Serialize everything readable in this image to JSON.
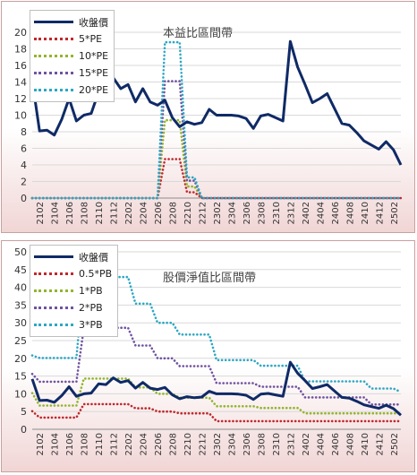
{
  "chart_data": [
    {
      "type": "line",
      "title": "本益比區間帶",
      "x": [
        "2101",
        "2102",
        "2103",
        "2104",
        "2105",
        "2106",
        "2107",
        "2108",
        "2109",
        "2110",
        "2111",
        "2112",
        "2201",
        "2202",
        "2203",
        "2204",
        "2205",
        "2206",
        "2207",
        "2208",
        "2209",
        "2210",
        "2211",
        "2212",
        "2301",
        "2302",
        "2303",
        "2304",
        "2305",
        "2306",
        "2307",
        "2308",
        "2309",
        "2310",
        "2311",
        "2312",
        "2401",
        "2402",
        "2403",
        "2404",
        "2405",
        "2406",
        "2407",
        "2408",
        "2409",
        "2410",
        "2411",
        "2412",
        "2501",
        "2502",
        "2503"
      ],
      "x_tick_labels": [
        "2102",
        "2104",
        "2106",
        "2108",
        "2110",
        "2112",
        "2202",
        "2204",
        "2206",
        "2208",
        "2210",
        "2212",
        "2302",
        "2304",
        "2306",
        "2308",
        "2310",
        "2312",
        "2402",
        "2404",
        "2406",
        "2408",
        "2410",
        "2412",
        "2502"
      ],
      "ylim": [
        0,
        20
      ],
      "y_ticks": [
        0,
        2,
        4,
        6,
        8,
        10,
        12,
        14,
        16,
        18,
        20
      ],
      "grid": true,
      "legend_position": "top-left",
      "series": [
        {
          "name": "收盤價",
          "style": "solid",
          "color": "#0f2a66",
          "values": [
            14.2,
            8.1,
            8.2,
            7.6,
            9.5,
            12.0,
            9.3,
            10.0,
            10.2,
            12.8,
            12.6,
            14.5,
            13.2,
            13.7,
            11.6,
            13.2,
            11.6,
            11.2,
            11.8,
            9.7,
            8.6,
            9.2,
            8.9,
            9.1,
            10.7,
            10.0,
            10.0,
            10.0,
            9.9,
            9.6,
            8.4,
            9.9,
            10.1,
            9.7,
            9.3,
            18.9,
            15.8,
            13.7,
            11.5,
            12.0,
            12.6,
            10.8,
            9.0,
            8.8,
            7.9,
            6.9,
            6.4,
            5.9,
            6.8,
            5.8,
            4.0
          ]
        },
        {
          "name": "5*PE",
          "style": "dotted",
          "color": "#c0282d",
          "values": [
            0,
            0,
            0,
            0,
            0,
            0,
            0,
            0,
            0,
            0,
            0,
            0,
            0,
            0,
            0,
            0,
            0,
            0,
            4.7,
            4.7,
            4.7,
            0.7,
            0.7,
            0,
            0,
            0,
            0,
            0,
            0,
            0,
            0,
            0,
            0,
            0,
            0,
            0,
            0,
            0,
            0,
            0,
            0,
            0,
            0,
            0,
            0,
            0,
            0,
            0,
            0,
            0,
            0
          ]
        },
        {
          "name": "10*PE",
          "style": "dotted",
          "color": "#92b52e",
          "values": [
            0,
            0,
            0,
            0,
            0,
            0,
            0,
            0,
            0,
            0,
            0,
            0,
            0,
            0,
            0,
            0,
            0,
            0,
            9.4,
            9.4,
            9.4,
            1.4,
            1.4,
            0,
            0,
            0,
            0,
            0,
            0,
            0,
            0,
            0,
            0,
            0,
            0,
            0,
            0,
            0,
            0,
            0,
            0,
            0,
            0,
            0,
            0,
            0,
            0,
            0,
            0,
            0,
            0
          ]
        },
        {
          "name": "15*PE",
          "style": "dotted",
          "color": "#7052a0",
          "values": [
            0,
            0,
            0,
            0,
            0,
            0,
            0,
            0,
            0,
            0,
            0,
            0,
            0,
            0,
            0,
            0,
            0,
            0,
            14.1,
            14.1,
            14.1,
            2.1,
            2.1,
            0,
            0,
            0,
            0,
            0,
            0,
            0,
            0,
            0,
            0,
            0,
            0,
            0,
            0,
            0,
            0,
            0,
            0,
            0,
            0,
            0,
            0,
            0,
            0,
            0,
            0,
            0,
            0
          ]
        },
        {
          "name": "20*PE",
          "style": "dotted",
          "color": "#2ea7c3",
          "values": [
            0,
            0,
            0,
            0,
            0,
            0,
            0,
            0,
            0,
            0,
            0,
            0,
            0,
            0,
            0,
            0,
            0,
            0,
            18.8,
            18.8,
            18.8,
            2.5,
            2.5,
            0,
            0,
            0,
            0,
            0,
            0,
            0,
            0,
            0,
            0,
            0,
            0,
            0,
            0,
            0,
            0,
            0,
            0,
            0,
            0,
            0,
            0,
            0,
            0,
            0,
            0,
            0,
            0
          ]
        }
      ]
    },
    {
      "type": "line",
      "title": "股價淨值比區間帶",
      "x": [
        "2101",
        "2102",
        "2103",
        "2104",
        "2105",
        "2106",
        "2107",
        "2108",
        "2109",
        "2110",
        "2111",
        "2112",
        "2201",
        "2202",
        "2203",
        "2204",
        "2205",
        "2206",
        "2207",
        "2208",
        "2209",
        "2210",
        "2211",
        "2212",
        "2301",
        "2302",
        "2303",
        "2304",
        "2305",
        "2306",
        "2307",
        "2308",
        "2309",
        "2310",
        "2311",
        "2312",
        "2401",
        "2402",
        "2403",
        "2404",
        "2405",
        "2406",
        "2407",
        "2408",
        "2409",
        "2410",
        "2411",
        "2412",
        "2501",
        "2502",
        "2503"
      ],
      "x_tick_labels": [
        "2102",
        "2104",
        "2106",
        "2108",
        "2110",
        "2112",
        "2202",
        "2204",
        "2206",
        "2208",
        "2210",
        "2212",
        "2302",
        "2304",
        "2306",
        "2308",
        "2310",
        "2312",
        "2402",
        "2404",
        "2406",
        "2408",
        "2410",
        "2412",
        "2502"
      ],
      "ylim": [
        0,
        50
      ],
      "y_ticks": [
        0,
        5,
        10,
        15,
        20,
        25,
        30,
        35,
        40,
        45,
        50
      ],
      "grid": true,
      "legend_position": "top-left",
      "series": [
        {
          "name": "收盤價",
          "style": "solid",
          "color": "#0f2a66",
          "values": [
            14.2,
            8.1,
            8.2,
            7.6,
            9.5,
            12.0,
            9.3,
            10.0,
            10.2,
            12.8,
            12.6,
            14.5,
            13.2,
            13.7,
            11.6,
            13.2,
            11.6,
            11.2,
            11.8,
            9.7,
            8.6,
            9.2,
            8.9,
            9.1,
            10.7,
            10.0,
            10.0,
            10.0,
            9.9,
            9.6,
            8.4,
            9.9,
            10.1,
            9.7,
            9.3,
            18.9,
            15.8,
            13.7,
            11.5,
            12.0,
            12.6,
            10.8,
            9.0,
            8.8,
            7.9,
            6.9,
            6.4,
            5.9,
            6.8,
            5.8,
            4.0
          ]
        },
        {
          "name": "0.5*PB",
          "style": "dotted",
          "color": "#c0282d",
          "values": [
            5.1,
            3.3,
            3.3,
            3.3,
            3.3,
            3.3,
            3.3,
            7.1,
            7.1,
            7.1,
            7.1,
            7.1,
            7.1,
            7.1,
            5.9,
            5.9,
            5.9,
            5.0,
            5.0,
            5.0,
            4.5,
            4.5,
            4.5,
            4.5,
            4.5,
            2.3,
            2.3,
            2.3,
            2.3,
            2.3,
            2.3,
            2.3,
            2.3,
            2.3,
            2.3,
            2.3,
            2.3,
            2.3,
            2.3,
            2.3,
            2.3,
            2.3,
            2.3,
            2.3,
            2.3,
            2.3,
            2.3,
            2.3,
            2.3,
            2.3,
            2.3
          ]
        },
        {
          "name": "1*PB",
          "style": "dotted",
          "color": "#92b52e",
          "values": [
            10.2,
            6.7,
            6.7,
            6.7,
            6.7,
            6.7,
            6.7,
            14.3,
            14.3,
            14.3,
            14.3,
            14.3,
            14.3,
            14.3,
            11.8,
            11.8,
            11.8,
            10.0,
            10.0,
            10.0,
            8.9,
            8.9,
            8.9,
            8.9,
            8.9,
            6.5,
            6.5,
            6.5,
            6.5,
            6.5,
            6.5,
            6.0,
            6.0,
            6.0,
            6.0,
            6.0,
            6.0,
            4.5,
            4.5,
            4.5,
            4.5,
            4.5,
            4.5,
            4.5,
            4.5,
            4.5,
            4.5,
            4.5,
            4.5,
            4.5,
            4.5
          ]
        },
        {
          "name": "2*PB",
          "style": "dotted",
          "color": "#7052a0",
          "values": [
            15.6,
            13.4,
            13.4,
            13.4,
            13.4,
            13.4,
            13.4,
            28.6,
            28.6,
            28.6,
            28.6,
            28.6,
            28.6,
            28.6,
            23.6,
            23.6,
            23.6,
            20.0,
            20.0,
            20.0,
            17.8,
            17.8,
            17.8,
            17.8,
            17.8,
            13.0,
            13.0,
            13.0,
            13.0,
            13.0,
            13.0,
            12.0,
            12.0,
            12.0,
            12.0,
            12.0,
            12.0,
            9.0,
            9.0,
            9.0,
            9.0,
            9.0,
            9.0,
            9.0,
            9.0,
            9.0,
            7.0,
            7.0,
            7.0,
            7.0,
            7.0
          ]
        },
        {
          "name": "3*PB",
          "style": "dotted",
          "color": "#2ea7c3",
          "values": [
            20.8,
            20.1,
            20.1,
            20.1,
            20.1,
            20.1,
            20.1,
            42.9,
            42.9,
            42.9,
            42.9,
            42.9,
            42.9,
            42.9,
            35.4,
            35.4,
            35.4,
            30.0,
            30.0,
            30.0,
            26.7,
            26.7,
            26.7,
            26.7,
            26.7,
            19.5,
            19.5,
            19.5,
            19.5,
            19.5,
            19.5,
            17.9,
            17.9,
            17.9,
            17.9,
            17.9,
            17.9,
            13.5,
            13.5,
            13.5,
            13.5,
            13.5,
            13.5,
            13.5,
            13.5,
            13.5,
            11.5,
            11.5,
            11.5,
            11.5,
            10.5
          ]
        }
      ]
    }
  ]
}
